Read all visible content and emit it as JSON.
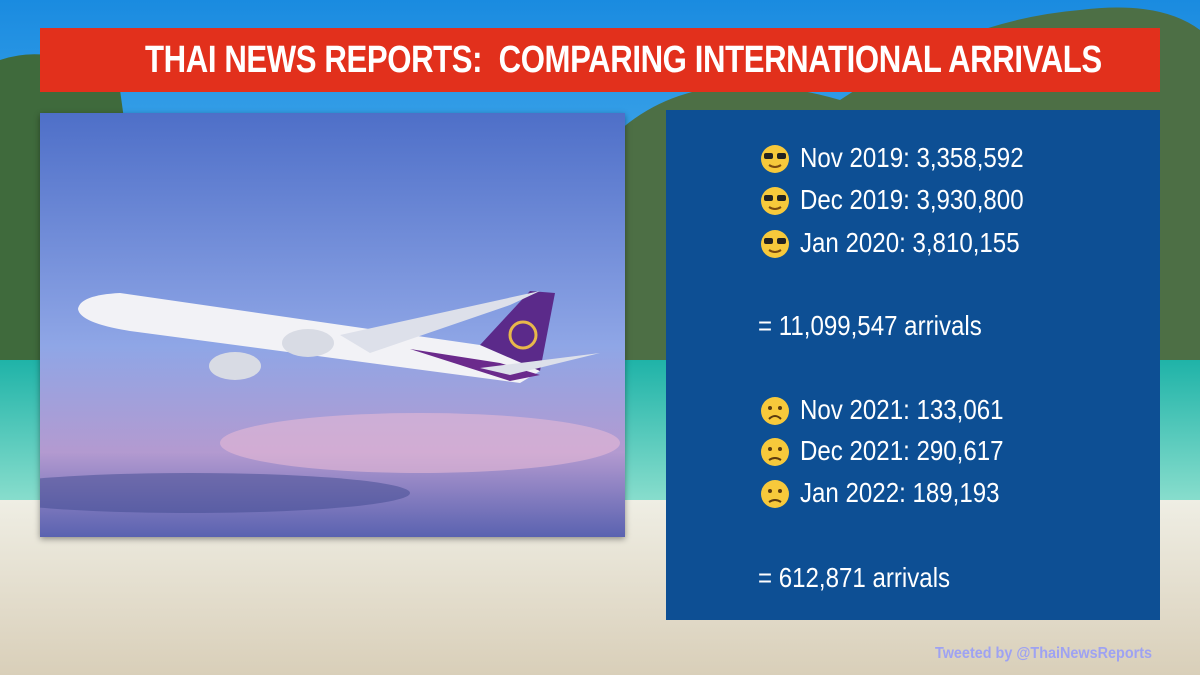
{
  "header": {
    "title": "THAI NEWS REPORTS:  COMPARING INTERNATIONAL ARRIVALS"
  },
  "panel": {
    "groups": [
      {
        "rows": [
          "Nov 2019: 3,358,592",
          "Dec 2019: 3,930,800",
          "Jan 2020: 3,810,155"
        ],
        "total": "= 11,099,547 arrivals"
      },
      {
        "rows": [
          "Nov 2021: 133,061",
          "Dec 2021: 290,617",
          "Jan 2022: 189,193"
        ],
        "total": "= 612,871 arrivals"
      }
    ]
  },
  "footer": {
    "credit": "Tweeted by @ThaiNewsReports"
  }
}
